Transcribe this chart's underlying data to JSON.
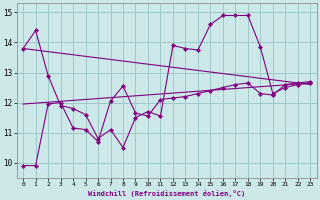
{
  "line_color": "#800080",
  "bg_color": "#cce8e8",
  "grid_color": "#a0c8c8",
  "xlabel": "Windchill (Refroidissement éolien,°C)",
  "ylim": [
    9.5,
    15.3
  ],
  "yticks": [
    10,
    11,
    12,
    13,
    14,
    15
  ],
  "xticks": [
    0,
    1,
    2,
    3,
    4,
    5,
    6,
    7,
    8,
    9,
    10,
    11,
    12,
    13,
    14,
    15,
    16,
    17,
    18,
    19,
    20,
    21,
    22,
    23
  ],
  "series1_x": [
    0,
    1,
    2,
    3,
    4,
    5,
    6,
    7,
    8,
    9,
    10,
    11,
    12,
    13,
    14,
    15,
    16,
    17,
    18,
    19,
    20,
    21,
    22,
    23
  ],
  "series1_y": [
    13.8,
    14.4,
    12.9,
    11.9,
    11.8,
    11.6,
    10.8,
    11.1,
    10.5,
    11.5,
    11.7,
    11.55,
    13.9,
    13.8,
    13.75,
    14.6,
    14.9,
    14.9,
    14.9,
    13.85,
    12.3,
    12.5,
    12.6,
    12.65
  ],
  "series2_x": [
    0,
    1,
    2,
    3,
    4,
    5,
    6,
    7,
    8,
    9,
    10,
    11,
    12,
    13,
    14,
    15,
    16,
    17,
    18,
    19,
    20,
    21,
    22,
    23
  ],
  "series2_y": [
    9.9,
    9.9,
    11.95,
    12.0,
    11.15,
    11.1,
    10.7,
    12.05,
    12.55,
    11.65,
    11.55,
    12.1,
    12.15,
    12.2,
    12.3,
    12.4,
    12.5,
    12.6,
    12.65,
    12.3,
    12.25,
    12.6,
    12.65,
    12.7
  ],
  "trend1_x": [
    0,
    23
  ],
  "trend1_y": [
    11.95,
    12.65
  ],
  "trend2_x": [
    0,
    23
  ],
  "trend2_y": [
    13.8,
    12.6
  ]
}
